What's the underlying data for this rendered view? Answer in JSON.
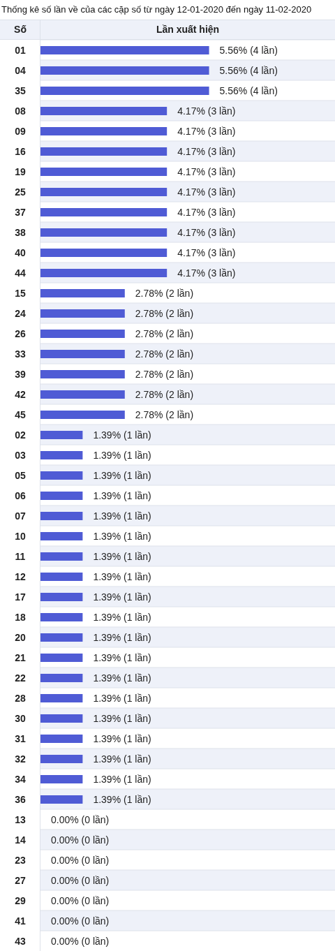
{
  "chart_data": {
    "type": "bar",
    "orientation": "horizontal",
    "title": "Thống kê số lần về của các cặp số từ ngày 12-01-2020 đến ngày 11-02-2020",
    "ylabel": "Số",
    "xlabel": "Lần xuất hiện",
    "categories": [
      "01",
      "04",
      "35",
      "08",
      "09",
      "16",
      "19",
      "25",
      "37",
      "38",
      "40",
      "44",
      "15",
      "24",
      "26",
      "33",
      "39",
      "42",
      "45",
      "02",
      "03",
      "05",
      "06",
      "07",
      "10",
      "11",
      "12",
      "17",
      "18",
      "20",
      "21",
      "22",
      "28",
      "30",
      "31",
      "32",
      "34",
      "36",
      "13",
      "14",
      "23",
      "27",
      "29",
      "41",
      "43"
    ],
    "values": [
      5.56,
      5.56,
      5.56,
      4.17,
      4.17,
      4.17,
      4.17,
      4.17,
      4.17,
      4.17,
      4.17,
      4.17,
      2.78,
      2.78,
      2.78,
      2.78,
      2.78,
      2.78,
      2.78,
      1.39,
      1.39,
      1.39,
      1.39,
      1.39,
      1.39,
      1.39,
      1.39,
      1.39,
      1.39,
      1.39,
      1.39,
      1.39,
      1.39,
      1.39,
      1.39,
      1.39,
      1.39,
      1.39,
      0,
      0,
      0,
      0,
      0,
      0,
      0
    ],
    "value_labels": [
      "5.56% (4 lần)",
      "5.56% (4 lần)",
      "5.56% (4 lần)",
      "4.17% (3 lần)",
      "4.17% (3 lần)",
      "4.17% (3 lần)",
      "4.17% (3 lần)",
      "4.17% (3 lần)",
      "4.17% (3 lần)",
      "4.17% (3 lần)",
      "4.17% (3 lần)",
      "4.17% (3 lần)",
      "2.78% (2 lần)",
      "2.78% (2 lần)",
      "2.78% (2 lần)",
      "2.78% (2 lần)",
      "2.78% (2 lần)",
      "2.78% (2 lần)",
      "2.78% (2 lần)",
      "1.39% (1 lần)",
      "1.39% (1 lần)",
      "1.39% (1 lần)",
      "1.39% (1 lần)",
      "1.39% (1 lần)",
      "1.39% (1 lần)",
      "1.39% (1 lần)",
      "1.39% (1 lần)",
      "1.39% (1 lần)",
      "1.39% (1 lần)",
      "1.39% (1 lần)",
      "1.39% (1 lần)",
      "1.39% (1 lần)",
      "1.39% (1 lần)",
      "1.39% (1 lần)",
      "1.39% (1 lần)",
      "1.39% (1 lần)",
      "1.39% (1 lần)",
      "1.39% (1 lần)",
      "0.00% (0 lần)",
      "0.00% (0 lần)",
      "0.00% (0 lần)",
      "0.00% (0 lần)",
      "0.00% (0 lần)",
      "0.00% (0 lần)",
      "0.00% (0 lần)"
    ],
    "color": "#4f5bd5",
    "grid": "y"
  }
}
